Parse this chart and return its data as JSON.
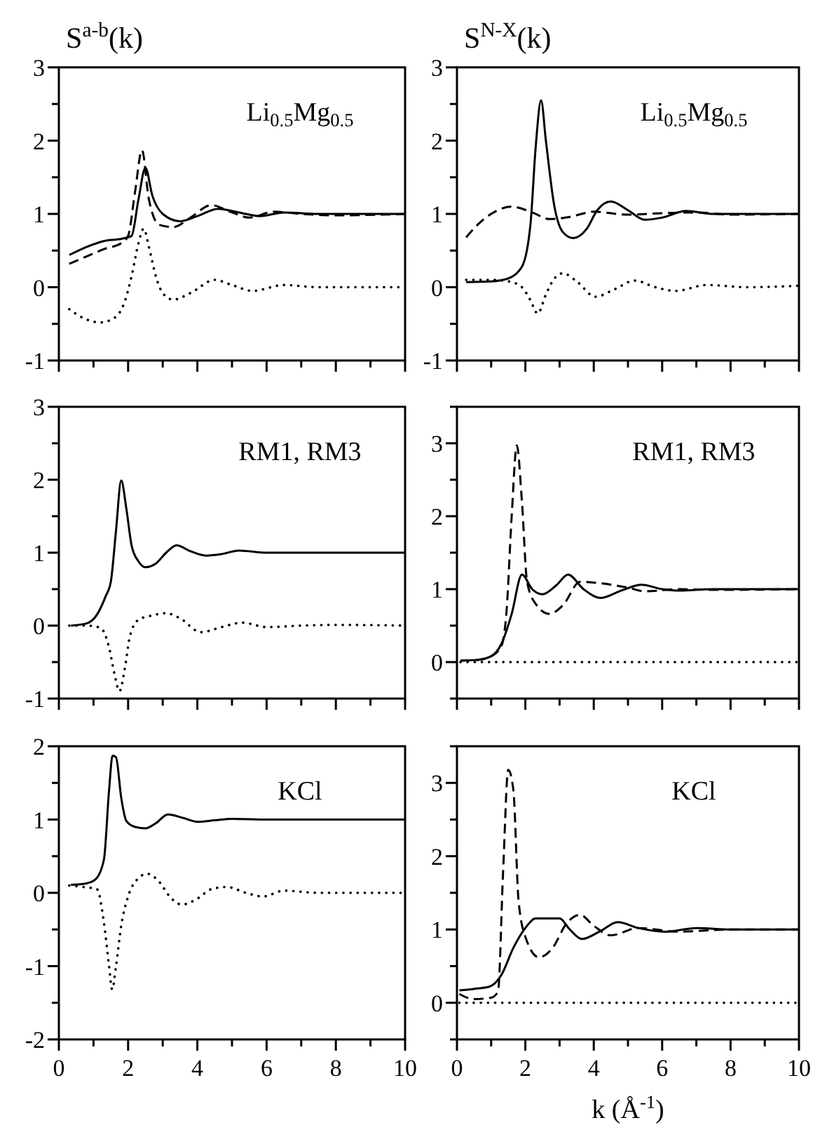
{
  "chart_data": [
    {
      "type": "line",
      "ylabel": "S$^{a-b}$(k)",
      "annotations": [
        "Li$_{0.5}$Mg$_{0.5}$"
      ],
      "xlim": [
        0,
        10
      ],
      "ylim": [
        -1,
        3
      ],
      "tick_labels": "y",
      "xticks": [
        0,
        {
          "value": 1,
          "label": null
        },
        2,
        {
          "value": 3,
          "label": null
        },
        4,
        {
          "value": 5,
          "label": null
        },
        6,
        {
          "value": 7,
          "label": null
        },
        8,
        {
          "value": 9,
          "label": null
        },
        10
      ],
      "yticks": [
        -1,
        {
          "value": -0.5,
          "label": null
        },
        0,
        {
          "value": 0.5,
          "label": null
        },
        1,
        {
          "value": 1.5,
          "label": null
        },
        2,
        {
          "value": 2.5,
          "label": null
        },
        3
      ],
      "series": [
        {
          "color": "#000000",
          "line_style": "solid",
          "x": [
            0.3,
            0.8,
            1.3,
            1.8,
            2.1,
            2.3,
            2.5,
            2.7,
            3.0,
            3.5,
            4.0,
            4.6,
            5.2,
            5.8,
            6.5,
            7.5,
            8.5,
            10
          ],
          "values": [
            0.44,
            0.55,
            0.63,
            0.66,
            0.7,
            1.2,
            1.63,
            1.25,
            1.0,
            0.9,
            0.97,
            1.07,
            1.02,
            0.97,
            1.02,
            1.0,
            1.0,
            1.0
          ]
        },
        {
          "color": "#000000",
          "line_style": "dashed",
          "x": [
            0.3,
            0.8,
            1.3,
            1.8,
            2.0,
            2.2,
            2.4,
            2.6,
            2.9,
            3.3,
            3.8,
            4.4,
            5.0,
            5.5,
            6.2,
            7,
            8,
            10
          ],
          "values": [
            0.32,
            0.42,
            0.52,
            0.6,
            0.7,
            1.3,
            1.87,
            1.2,
            0.85,
            0.82,
            0.95,
            1.12,
            1.02,
            0.95,
            1.03,
            1.0,
            0.98,
            1.0
          ]
        },
        {
          "color": "#000000",
          "line_style": "dotted",
          "x": [
            0.3,
            0.7,
            1.2,
            1.6,
            1.9,
            2.1,
            2.3,
            2.45,
            2.6,
            2.8,
            3.0,
            3.3,
            3.8,
            4.5,
            5.0,
            5.6,
            6.5,
            7.5,
            10
          ],
          "values": [
            -0.3,
            -0.42,
            -0.48,
            -0.42,
            -0.2,
            0.15,
            0.6,
            0.8,
            0.55,
            0.15,
            -0.08,
            -0.17,
            -0.08,
            0.1,
            0.03,
            -0.05,
            0.03,
            0.0,
            0.0
          ]
        }
      ]
    },
    {
      "type": "line",
      "ylabel": "S$^{N-X}$(k)",
      "annotations": [
        "Li$_{0.5}$Mg$_{0.5}$"
      ],
      "xlim": [
        0,
        10
      ],
      "ylim": [
        -1,
        3
      ],
      "tick_labels": "y",
      "xticks": [
        0,
        {
          "value": 1,
          "label": null
        },
        2,
        {
          "value": 3,
          "label": null
        },
        4,
        {
          "value": 5,
          "label": null
        },
        6,
        {
          "value": 7,
          "label": null
        },
        8,
        {
          "value": 9,
          "label": null
        },
        10
      ],
      "yticks": [
        -1,
        {
          "value": -0.5,
          "label": null
        },
        0,
        {
          "value": 0.5,
          "label": null
        },
        1,
        {
          "value": 1.5,
          "label": null
        },
        2,
        {
          "value": 2.5,
          "label": null
        },
        3
      ],
      "series": [
        {
          "color": "#000000",
          "line_style": "solid",
          "x": [
            0.27,
            1.0,
            1.5,
            1.9,
            2.15,
            2.3,
            2.46,
            2.6,
            2.85,
            3.1,
            3.4,
            3.8,
            4.1,
            4.5,
            5.0,
            5.5,
            6.0,
            6.7,
            7.5,
            8.5,
            10
          ],
          "values": [
            0.07,
            0.08,
            0.12,
            0.28,
            0.86,
            1.9,
            2.55,
            2.0,
            1.1,
            0.75,
            0.67,
            0.8,
            1.05,
            1.17,
            1.05,
            0.92,
            0.95,
            1.04,
            1.0,
            1.0,
            1.0
          ]
        },
        {
          "color": "#000000",
          "line_style": "dashed",
          "x": [
            0.27,
            0.6,
            1.0,
            1.6,
            2.2,
            2.7,
            3.3,
            4.0,
            5.0,
            6.0,
            7.0,
            8.0,
            10
          ],
          "values": [
            0.68,
            0.85,
            1.0,
            1.1,
            1.02,
            0.93,
            0.96,
            1.03,
            0.99,
            1.01,
            1.02,
            0.99,
            1.0
          ]
        },
        {
          "color": "#000000",
          "line_style": "dotted",
          "x": [
            0.27,
            1.0,
            1.5,
            1.9,
            2.15,
            2.36,
            2.6,
            2.85,
            3.1,
            3.5,
            4.05,
            4.6,
            5.2,
            5.8,
            6.4,
            7.3,
            8.5,
            10
          ],
          "values": [
            0.1,
            0.1,
            0.08,
            0.0,
            -0.18,
            -0.36,
            -0.1,
            0.12,
            0.19,
            0.08,
            -0.13,
            -0.03,
            0.09,
            0.0,
            -0.05,
            0.03,
            0.0,
            0.02
          ]
        }
      ]
    },
    {
      "type": "line",
      "annotations": [
        "RM1, RM3"
      ],
      "xlim": [
        0,
        10
      ],
      "ylim": [
        -1,
        3
      ],
      "tick_labels": "y",
      "xticks": [
        0,
        {
          "value": 1,
          "label": null
        },
        2,
        {
          "value": 3,
          "label": null
        },
        4,
        {
          "value": 5,
          "label": null
        },
        6,
        {
          "value": 7,
          "label": null
        },
        8,
        {
          "value": 9,
          "label": null
        },
        10
      ],
      "yticks": [
        -1,
        {
          "value": -0.5,
          "label": null
        },
        0,
        {
          "value": 0.5,
          "label": null
        },
        1,
        {
          "value": 1.5,
          "label": null
        },
        2,
        {
          "value": 2.5,
          "label": null
        },
        3
      ],
      "series": [
        {
          "color": "#000000",
          "line_style": "solid",
          "x": [
            0.35,
            0.8,
            1.1,
            1.35,
            1.5,
            1.65,
            1.8,
            1.95,
            2.1,
            2.3,
            2.5,
            2.8,
            3.1,
            3.4,
            3.8,
            4.25,
            4.7,
            5.2,
            6,
            7,
            8,
            10
          ],
          "values": [
            0.0,
            0.03,
            0.15,
            0.4,
            0.6,
            1.3,
            1.99,
            1.6,
            1.1,
            0.88,
            0.8,
            0.85,
            1.0,
            1.1,
            1.02,
            0.96,
            0.98,
            1.03,
            1.0,
            1.0,
            1.0,
            1.0
          ]
        },
        {
          "color": "#000000",
          "line_style": "dotted",
          "x": [
            0.3,
            0.8,
            1.2,
            1.45,
            1.6,
            1.75,
            1.9,
            2.05,
            2.3,
            2.7,
            3.1,
            3.5,
            4.1,
            4.7,
            5.3,
            6,
            7,
            8,
            10
          ],
          "values": [
            0.0,
            0.0,
            -0.03,
            -0.3,
            -0.65,
            -0.9,
            -0.6,
            -0.15,
            0.08,
            0.14,
            0.17,
            0.1,
            -0.09,
            -0.02,
            0.04,
            -0.02,
            0.0,
            0.01,
            0.0
          ]
        }
      ]
    },
    {
      "type": "line",
      "annotations": [
        "RM1, RM3"
      ],
      "xlim": [
        0,
        10
      ],
      "ylim": [
        -0.5,
        3.5
      ],
      "tick_labels": "y",
      "xticks": [
        0,
        {
          "value": 1,
          "label": null
        },
        2,
        {
          "value": 3,
          "label": null
        },
        4,
        {
          "value": 5,
          "label": null
        },
        6,
        {
          "value": 7,
          "label": null
        },
        8,
        {
          "value": 9,
          "label": null
        },
        10
      ],
      "yticks": [
        {
          "value": -0.5,
          "label": null
        },
        0,
        {
          "value": 0.5,
          "label": null
        },
        1,
        {
          "value": 1.5,
          "label": null
        },
        2,
        {
          "value": 2.5,
          "label": null
        },
        3,
        {
          "value": 3.5,
          "label": null
        }
      ],
      "series": [
        {
          "color": "#000000",
          "line_style": "solid",
          "x": [
            0.1,
            0.6,
            1.0,
            1.3,
            1.6,
            1.9,
            2.2,
            2.5,
            2.9,
            3.25,
            3.7,
            4.2,
            4.8,
            5.4,
            6,
            6.5,
            7.5,
            8.5,
            10
          ],
          "values": [
            0.02,
            0.03,
            0.08,
            0.25,
            0.66,
            1.2,
            1.0,
            0.93,
            1.05,
            1.2,
            1.0,
            0.88,
            0.98,
            1.06,
            1.0,
            0.98,
            1.0,
            1.0,
            1.0
          ]
        },
        {
          "color": "#000000",
          "line_style": "dashed",
          "x": [
            0.1,
            0.6,
            1.0,
            1.3,
            1.45,
            1.6,
            1.75,
            1.9,
            2.05,
            2.3,
            2.7,
            3.1,
            3.6,
            4.2,
            5.0,
            5.5,
            6.5,
            7.5,
            10
          ],
          "values": [
            0.02,
            0.03,
            0.08,
            0.22,
            0.7,
            2.0,
            2.97,
            2.2,
            1.1,
            0.8,
            0.66,
            0.78,
            1.1,
            1.08,
            1.02,
            0.97,
            1.0,
            0.99,
            1.0
          ]
        },
        {
          "color": "#000000",
          "line_style": "dotted",
          "x": [
            0.1,
            10
          ],
          "values": [
            0,
            0
          ]
        }
      ]
    },
    {
      "type": "line",
      "annotations": [
        "KCl"
      ],
      "xlim": [
        0,
        10
      ],
      "ylim": [
        -2,
        2
      ],
      "xticks": [
        0,
        {
          "value": 1,
          "label": null
        },
        2,
        {
          "value": 3,
          "label": null
        },
        4,
        {
          "value": 5,
          "label": null
        },
        6,
        {
          "value": 7,
          "label": null
        },
        8,
        {
          "value": 9,
          "label": null
        },
        10
      ],
      "yticks": [
        -2,
        {
          "value": -1.5,
          "label": null
        },
        -1,
        {
          "value": -0.5,
          "label": null
        },
        0,
        {
          "value": 0.5,
          "label": null
        },
        1,
        {
          "value": 1.5,
          "label": null
        },
        2
      ],
      "series": [
        {
          "color": "#000000",
          "line_style": "solid",
          "x": [
            0.35,
            0.8,
            1.05,
            1.3,
            1.45,
            1.55,
            1.65,
            1.8,
            1.95,
            2.2,
            2.5,
            2.8,
            3.15,
            3.6,
            4.0,
            4.5,
            5,
            6,
            7,
            8,
            10
          ],
          "values": [
            0.11,
            0.13,
            0.18,
            0.45,
            1.4,
            1.87,
            1.85,
            1.3,
            0.98,
            0.9,
            0.88,
            0.95,
            1.07,
            1.02,
            0.97,
            0.99,
            1.01,
            1.0,
            1.0,
            1.0,
            1.0
          ]
        },
        {
          "color": "#000000",
          "line_style": "dotted",
          "x": [
            0.3,
            0.7,
            1.1,
            1.3,
            1.45,
            1.54,
            1.65,
            1.8,
            2.0,
            2.3,
            2.55,
            2.9,
            3.2,
            3.55,
            4.0,
            4.4,
            4.85,
            5.4,
            5.9,
            6.5,
            7.5,
            10
          ],
          "values": [
            0.1,
            0.08,
            0.05,
            -0.4,
            -1.0,
            -1.32,
            -1.0,
            -0.45,
            -0.05,
            0.2,
            0.26,
            0.15,
            -0.05,
            -0.16,
            -0.08,
            0.05,
            0.08,
            0.0,
            -0.05,
            0.03,
            0.0,
            0.0
          ]
        }
      ]
    },
    {
      "type": "line",
      "xlabel": "k (Å$^{-1}$)",
      "annotations": [
        "KCl"
      ],
      "xlim": [
        0,
        10
      ],
      "ylim": [
        -0.5,
        3.5
      ],
      "xticks": [
        0,
        {
          "value": 1,
          "label": null
        },
        2,
        {
          "value": 3,
          "label": null
        },
        4,
        {
          "value": 5,
          "label": null
        },
        6,
        {
          "value": 7,
          "label": null
        },
        8,
        {
          "value": 9,
          "label": null
        },
        10
      ],
      "yticks": [
        {
          "value": -0.5,
          "label": null
        },
        0,
        {
          "value": 0.5,
          "label": null
        },
        1,
        {
          "value": 1.5,
          "label": null
        },
        2,
        {
          "value": 2.5,
          "label": null
        },
        3,
        {
          "value": 3.5,
          "label": null
        }
      ],
      "series": [
        {
          "color": "#000000",
          "line_style": "solid",
          "x": [
            0.07,
            0.5,
            0.95,
            1.3,
            1.65,
            2.0,
            2.3,
            2.7,
            3.0,
            3.3,
            3.65,
            4.2,
            4.7,
            5.3,
            6.1,
            7,
            8,
            10
          ],
          "values": [
            0.17,
            0.19,
            0.22,
            0.38,
            0.75,
            1.02,
            1.15,
            1.15,
            1.15,
            1.0,
            0.87,
            0.98,
            1.1,
            1.02,
            0.97,
            1.02,
            1.0,
            1.0
          ]
        },
        {
          "color": "#000000",
          "line_style": "dashed",
          "x": [
            0.07,
            0.5,
            1.0,
            1.2,
            1.35,
            1.5,
            1.65,
            1.8,
            2.0,
            2.4,
            2.8,
            3.2,
            3.6,
            4.0,
            4.5,
            5.3,
            6.5,
            8,
            10
          ],
          "values": [
            0.12,
            0.05,
            0.07,
            0.15,
            1.8,
            3.18,
            2.9,
            1.4,
            0.9,
            0.62,
            0.75,
            1.08,
            1.2,
            1.05,
            0.92,
            1.02,
            0.97,
            1.0,
            1.0
          ]
        },
        {
          "color": "#000000",
          "line_style": "dotted",
          "x": [
            0.07,
            10
          ],
          "values": [
            0,
            0
          ]
        }
      ]
    }
  ]
}
